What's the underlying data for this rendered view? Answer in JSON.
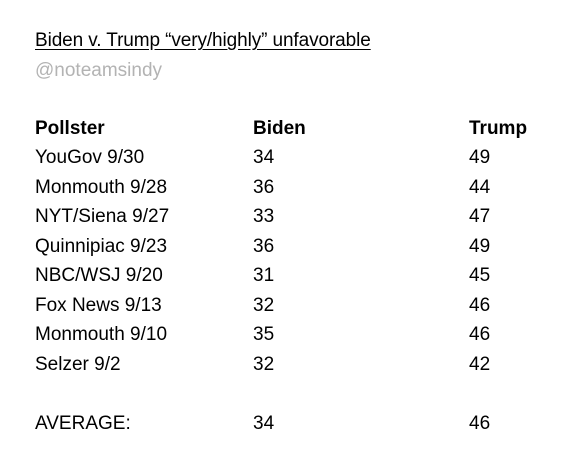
{
  "title": "Biden v. Trump “very/highly” unfavorable",
  "handle": "@noteamsindy",
  "table": {
    "headers": [
      "Pollster",
      "Biden",
      "Trump"
    ],
    "rows": [
      [
        "YouGov 9/30",
        "34",
        "49"
      ],
      [
        "Monmouth 9/28",
        "36",
        "44"
      ],
      [
        "NYT/Siena 9/27",
        "33",
        "47"
      ],
      [
        "Quinnipiac 9/23",
        "36",
        "49"
      ],
      [
        "NBC/WSJ 9/20",
        "31",
        "45"
      ],
      [
        "Fox News 9/13",
        "32",
        "46"
      ],
      [
        "Monmouth 9/10",
        "35",
        "46"
      ],
      [
        "Selzer 9/2",
        "32",
        "42"
      ]
    ],
    "average": [
      "AVERAGE:",
      "34",
      "46"
    ]
  }
}
